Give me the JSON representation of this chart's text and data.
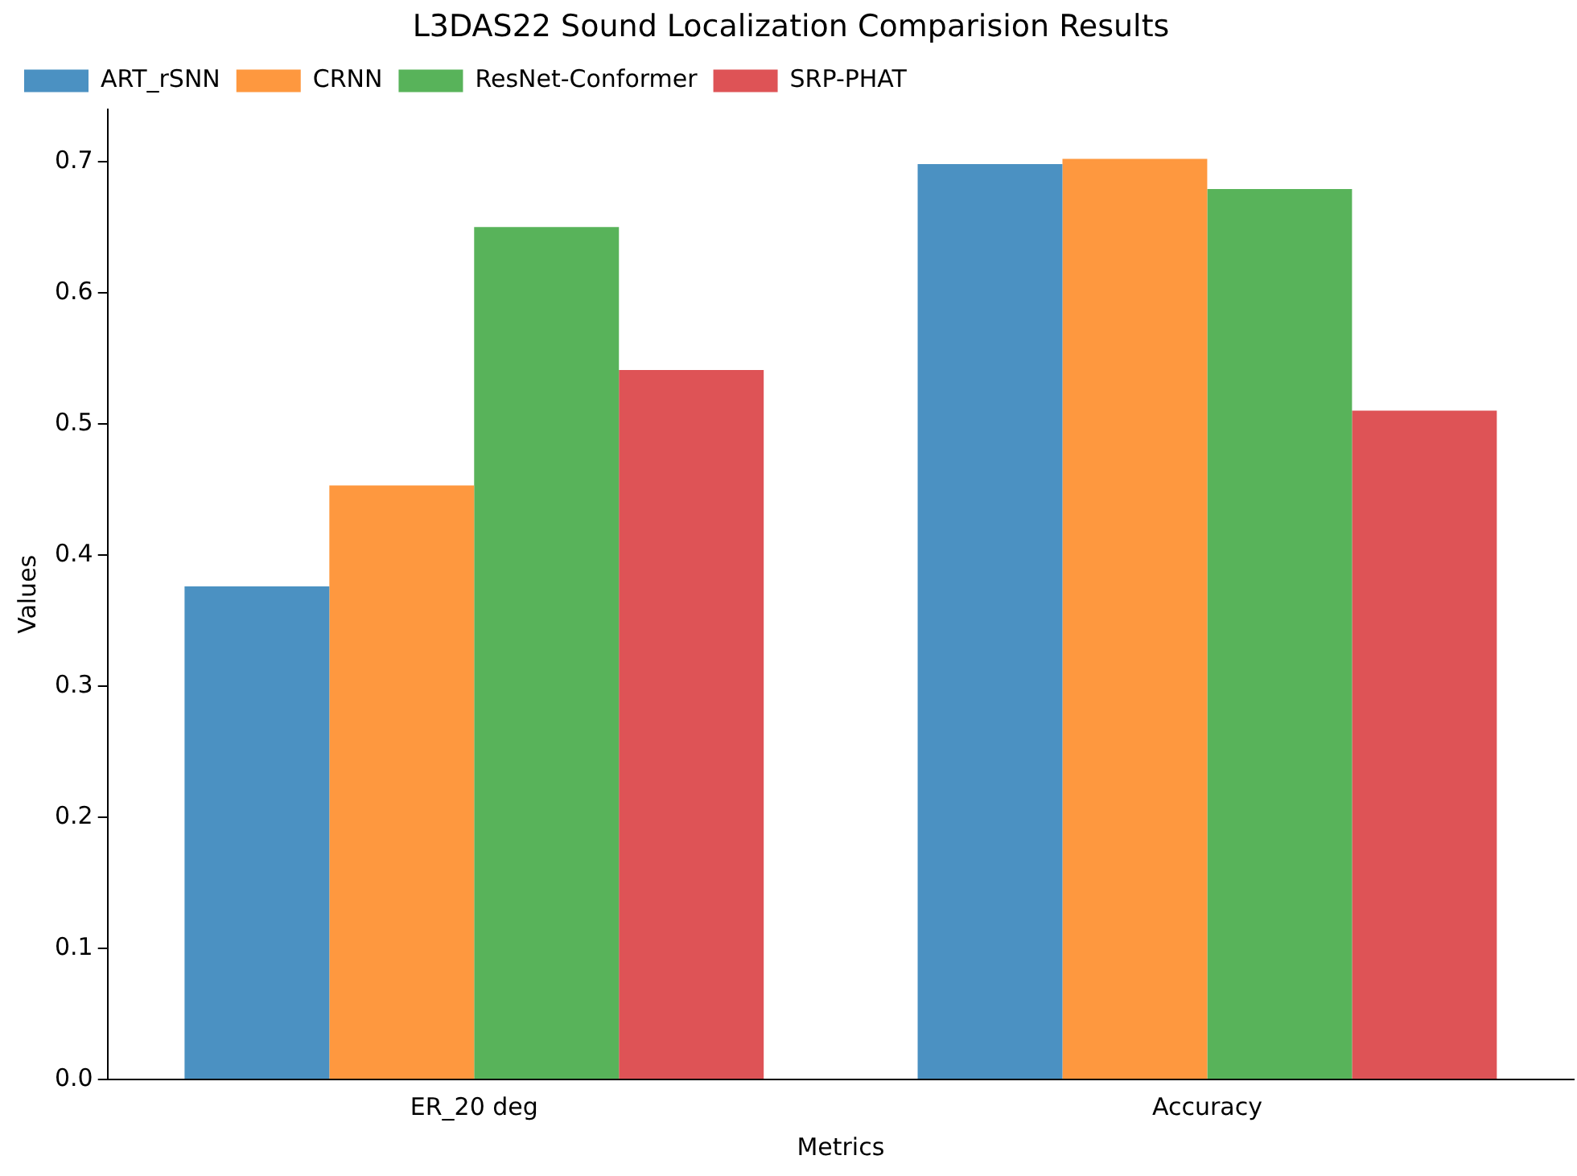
{
  "chart_data": {
    "type": "bar",
    "title": "L3DAS22 Sound Localization Comparision Results",
    "xlabel": "Metrics",
    "ylabel": "Values",
    "categories": [
      "ER_20 deg",
      "Accuracy"
    ],
    "series": [
      {
        "name": "ART_rSNN",
        "color": "#4b91c2",
        "values": [
          0.376,
          0.698
        ]
      },
      {
        "name": "CRNN",
        "color": "#fe983f",
        "values": [
          0.453,
          0.702
        ]
      },
      {
        "name": "ResNet-Conformer",
        "color": "#58b35a",
        "values": [
          0.65,
          0.679
        ]
      },
      {
        "name": "SRP-PHAT",
        "color": "#de5356",
        "values": [
          0.541,
          0.51
        ]
      }
    ],
    "ylim": [
      0,
      0.74
    ],
    "yticks": [
      {
        "value": 0,
        "label": "0.0"
      },
      0.1,
      0.2,
      0.3,
      0.4,
      0.5,
      0.6,
      0.7
    ],
    "grid": false,
    "legend": "top left"
  }
}
